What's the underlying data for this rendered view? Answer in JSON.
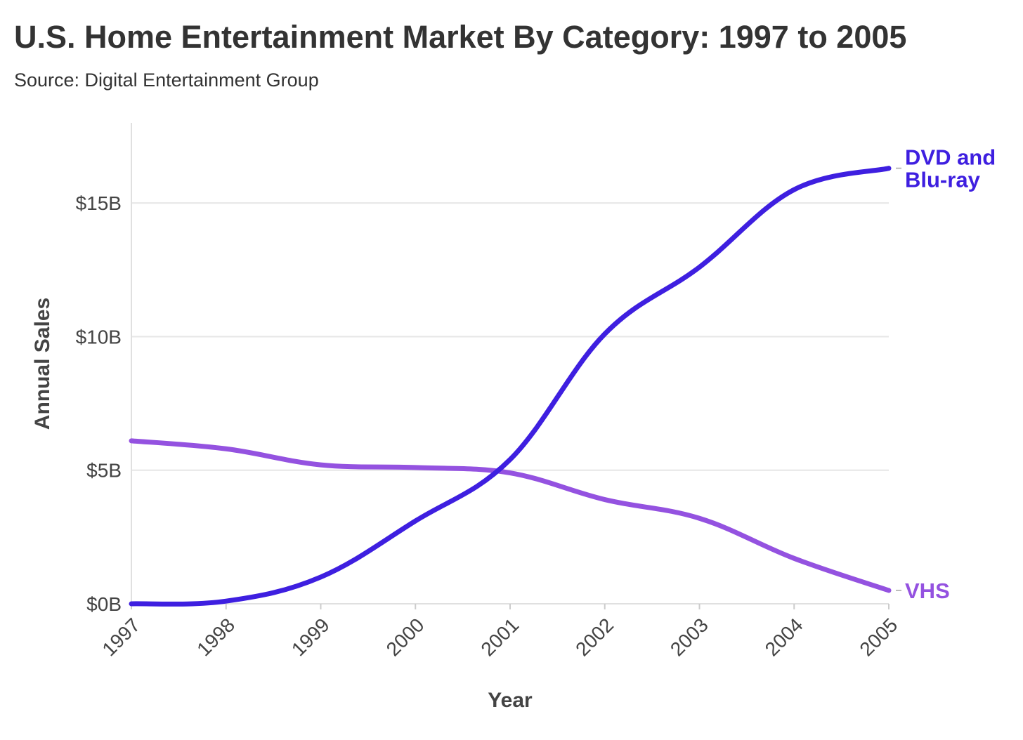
{
  "chart_data": {
    "type": "line",
    "title": "U.S. Home Entertainment Market By Category: 1997 to 2005",
    "subtitle": "Source: Digital Entertainment Group",
    "xlabel": "Year",
    "ylabel": "Annual Sales",
    "x": [
      1997,
      1998,
      1999,
      2000,
      2001,
      2002,
      2003,
      2004,
      2005
    ],
    "ylim": [
      0,
      18
    ],
    "yticks": [
      0,
      5,
      10,
      15
    ],
    "ytick_labels": [
      "$0B",
      "$5B",
      "$10B",
      "$15B"
    ],
    "grid": true,
    "legend": "direct labels at line ends",
    "series": [
      {
        "name": "DVD and Blu-ray",
        "label_lines": [
          "DVD and",
          "Blu-ray"
        ],
        "color": "#3e1fe0",
        "values": [
          0.0,
          0.1,
          1.0,
          3.1,
          5.4,
          10.1,
          12.6,
          15.5,
          16.3
        ]
      },
      {
        "name": "VHS",
        "label_lines": [
          "VHS"
        ],
        "color": "#9452e0",
        "values": [
          6.1,
          5.8,
          5.2,
          5.1,
          4.9,
          3.9,
          3.2,
          1.7,
          0.5
        ]
      }
    ]
  }
}
